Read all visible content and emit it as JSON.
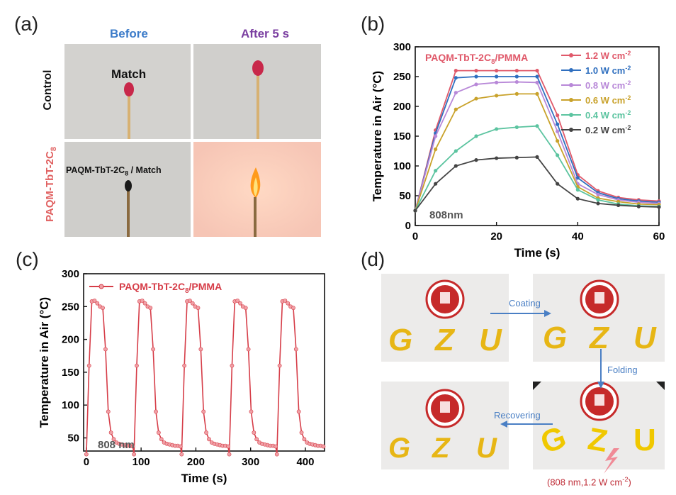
{
  "panels": {
    "a": {
      "label": "(a)",
      "col_before": "Before",
      "col_after": "After 5 s",
      "row_control": "Control",
      "row_sample": "PAQM-TbT-2C",
      "row_sample_sub": "8",
      "match_label": "Match",
      "coated_label": "PAQM-TbT-2C",
      "coated_label_sub": "8",
      "coated_label_tail": " / Match",
      "colors": {
        "before": "#3d7cc9",
        "after": "#7a3ea0",
        "sample": "#e06060"
      }
    },
    "b": {
      "label": "(b)"
    },
    "c": {
      "label": "(c)"
    },
    "d": {
      "label": "(d)",
      "step_coating": "Coating",
      "step_folding": "Folding",
      "step_recovering": "Recovering",
      "letters": [
        "G",
        "Z",
        "U"
      ],
      "condition": "(808 nm,1.2 W cm",
      "condition_sup": "-2",
      "condition_tail": ")"
    }
  },
  "chart_data": [
    {
      "id": "b",
      "type": "line",
      "title": "PAQM-TbT-2C8/PMMA",
      "xlabel": "Time (s)",
      "ylabel": "Temperature in Air (°C)",
      "annotation": "808nm",
      "xlim": [
        0,
        60
      ],
      "ylim": [
        0,
        300
      ],
      "xticks": [
        0,
        20,
        40,
        60
      ],
      "yticks": [
        0,
        50,
        100,
        150,
        200,
        250,
        300
      ],
      "x": [
        0,
        5,
        10,
        15,
        20,
        25,
        30,
        35,
        40,
        45,
        50,
        55,
        60
      ],
      "series": [
        {
          "name": "1.2 W cm-2",
          "color": "#e0596a",
          "values": [
            25,
            160,
            260,
            260,
            260,
            260,
            260,
            185,
            85,
            58,
            47,
            43,
            41
          ]
        },
        {
          "name": "1.0 W cm-2",
          "color": "#2f6fbf",
          "values": [
            25,
            155,
            248,
            250,
            250,
            250,
            250,
            170,
            80,
            55,
            45,
            41,
            39
          ]
        },
        {
          "name": "0.8 W cm-2",
          "color": "#b888d8",
          "values": [
            25,
            150,
            223,
            237,
            240,
            241,
            240,
            158,
            70,
            52,
            43,
            39,
            37
          ]
        },
        {
          "name": "0.6 W cm-2",
          "color": "#c9a22b",
          "values": [
            25,
            128,
            195,
            213,
            218,
            221,
            221,
            142,
            65,
            46,
            40,
            36,
            35
          ]
        },
        {
          "name": "0.4 W cm-2",
          "color": "#5cc4a0",
          "values": [
            25,
            92,
            125,
            150,
            162,
            165,
            167,
            118,
            60,
            43,
            36,
            33,
            32
          ]
        },
        {
          "name": "0.2 W cm-2",
          "color": "#444444",
          "values": [
            25,
            70,
            100,
            110,
            113,
            114,
            115,
            70,
            45,
            37,
            34,
            32,
            31
          ]
        }
      ],
      "legend_unit": "W cm",
      "legend_sup": "-2"
    },
    {
      "id": "c",
      "type": "line",
      "title": "PAQM-TbT-2C8/PMMA",
      "xlabel": "Time (s)",
      "ylabel": "Temperature in Air (°C)",
      "annotation": "808 nm",
      "xlim": [
        -5,
        435
      ],
      "ylim": [
        30,
        300
      ],
      "xticks": [
        0,
        100,
        200,
        300,
        400
      ],
      "yticks": [
        50,
        100,
        150,
        200,
        250,
        300
      ],
      "cycle_period": 87,
      "cycles": 5,
      "cycle_x": [
        0,
        5,
        10,
        15,
        20,
        25,
        30,
        35,
        40,
        45,
        50,
        55,
        60,
        65,
        70,
        75,
        80,
        85
      ],
      "cycle_y": [
        25,
        160,
        258,
        259,
        255,
        250,
        248,
        185,
        90,
        58,
        48,
        43,
        41,
        40,
        39,
        38,
        38,
        37
      ],
      "color": "#d63d48"
    }
  ]
}
